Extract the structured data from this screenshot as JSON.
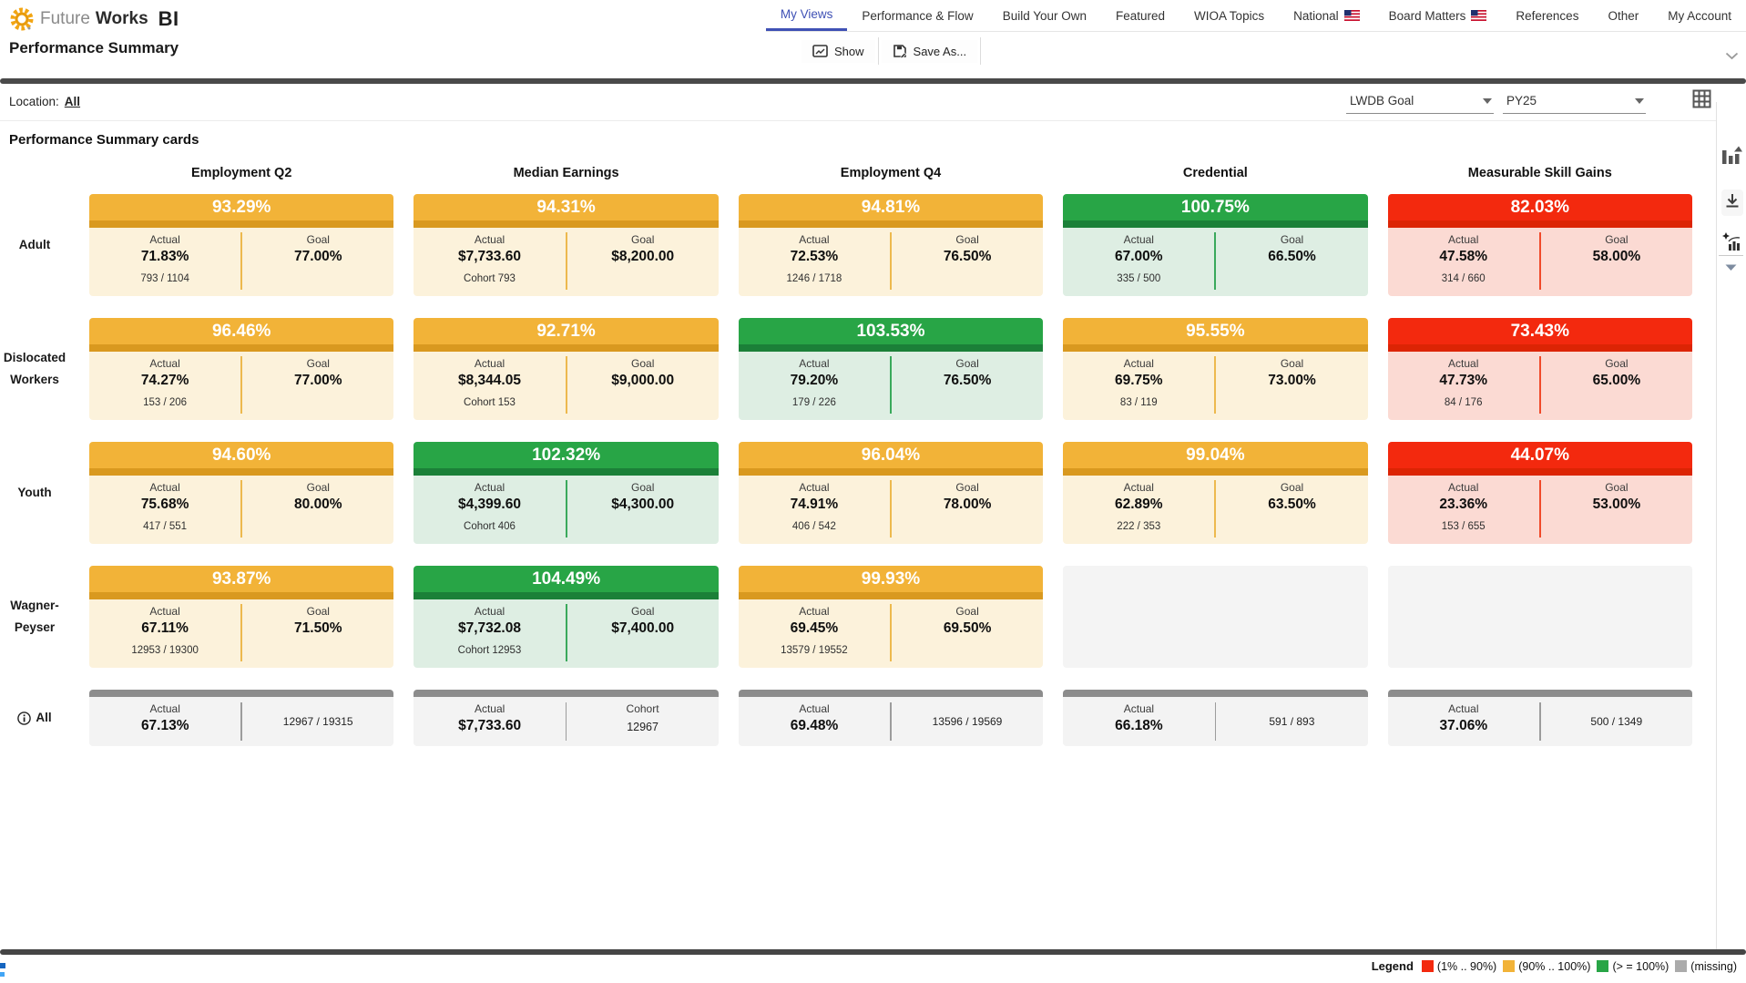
{
  "colors": {
    "accent": "#3F51B5",
    "status_yellow": "#F2B338",
    "status_green": "#28A546",
    "status_red": "#F3290E",
    "status_gray": "#8C8C8C"
  },
  "brand": {
    "part1": "Future",
    "part2": "Works",
    "part3": "BI"
  },
  "nav": {
    "items": [
      {
        "label": "My Views",
        "active": true
      },
      {
        "label": "Performance & Flow"
      },
      {
        "label": "Build Your Own"
      },
      {
        "label": "Featured"
      },
      {
        "label": "WIOA Topics"
      },
      {
        "label": "National",
        "flag": true
      },
      {
        "label": "Board Matters",
        "flag": true
      },
      {
        "label": "References"
      },
      {
        "label": "Other"
      },
      {
        "label": "My Account"
      }
    ]
  },
  "toolbar": {
    "title": "Performance Summary",
    "show_label": "Show",
    "save_as_label": "Save As..."
  },
  "filters": {
    "location_label": "Location:",
    "location_value": "All",
    "goal_selected": "LWDB Goal",
    "year_selected": "PY25"
  },
  "cards": {
    "section_title": "Performance Summary cards",
    "labels": {
      "actual": "Actual",
      "goal": "Goal"
    },
    "columns": [
      "Employment Q2",
      "Median Earnings",
      "Employment Q4",
      "Credential",
      "Measurable Skill Gains"
    ],
    "rows": [
      {
        "label": "Adult",
        "cells": [
          {
            "type": "metric",
            "status": "mid",
            "pct": "93.29%",
            "actual": "71.83%",
            "goal": "77.00%",
            "note": "793 / 1104"
          },
          {
            "type": "metric",
            "status": "mid",
            "pct": "94.31%",
            "actual": "$7,733.60",
            "goal": "$8,200.00",
            "note": "Cohort 793"
          },
          {
            "type": "metric",
            "status": "mid",
            "pct": "94.81%",
            "actual": "72.53%",
            "goal": "76.50%",
            "note": "1246 / 1718"
          },
          {
            "type": "metric",
            "status": "good",
            "pct": "100.75%",
            "actual": "67.00%",
            "goal": "66.50%",
            "note": "335 / 500"
          },
          {
            "type": "metric",
            "status": "bad",
            "pct": "82.03%",
            "actual": "47.58%",
            "goal": "58.00%",
            "note": "314 / 660"
          }
        ]
      },
      {
        "label": "Dislocated Workers",
        "cells": [
          {
            "type": "metric",
            "status": "mid",
            "pct": "96.46%",
            "actual": "74.27%",
            "goal": "77.00%",
            "note": "153 / 206"
          },
          {
            "type": "metric",
            "status": "mid",
            "pct": "92.71%",
            "actual": "$8,344.05",
            "goal": "$9,000.00",
            "note": "Cohort 153"
          },
          {
            "type": "metric",
            "status": "good",
            "pct": "103.53%",
            "actual": "79.20%",
            "goal": "76.50%",
            "note": "179 / 226"
          },
          {
            "type": "metric",
            "status": "mid",
            "pct": "95.55%",
            "actual": "69.75%",
            "goal": "73.00%",
            "note": "83 / 119"
          },
          {
            "type": "metric",
            "status": "bad",
            "pct": "73.43%",
            "actual": "47.73%",
            "goal": "65.00%",
            "note": "84 / 176"
          }
        ]
      },
      {
        "label": "Youth",
        "cells": [
          {
            "type": "metric",
            "status": "mid",
            "pct": "94.60%",
            "actual": "75.68%",
            "goal": "80.00%",
            "note": "417 / 551"
          },
          {
            "type": "metric",
            "status": "good",
            "pct": "102.32%",
            "actual": "$4,399.60",
            "goal": "$4,300.00",
            "note": "Cohort 406"
          },
          {
            "type": "metric",
            "status": "mid",
            "pct": "96.04%",
            "actual": "74.91%",
            "goal": "78.00%",
            "note": "406 / 542"
          },
          {
            "type": "metric",
            "status": "mid",
            "pct": "99.04%",
            "actual": "62.89%",
            "goal": "63.50%",
            "note": "222 / 353"
          },
          {
            "type": "metric",
            "status": "bad",
            "pct": "44.07%",
            "actual": "23.36%",
            "goal": "53.00%",
            "note": "153 / 655"
          }
        ]
      },
      {
        "label": "Wagner-Peyser",
        "cells": [
          {
            "type": "metric",
            "status": "mid",
            "pct": "93.87%",
            "actual": "67.11%",
            "goal": "71.50%",
            "note": "12953 / 19300"
          },
          {
            "type": "metric",
            "status": "good",
            "pct": "104.49%",
            "actual": "$7,732.08",
            "goal": "$7,400.00",
            "note": "Cohort 12953"
          },
          {
            "type": "metric",
            "status": "mid",
            "pct": "99.93%",
            "actual": "69.45%",
            "goal": "69.50%",
            "note": "13579 / 19552"
          },
          {
            "type": "empty"
          },
          {
            "type": "empty"
          }
        ]
      },
      {
        "label": "All",
        "info": true,
        "cells": [
          {
            "type": "summary",
            "actual": "67.13%",
            "right": "12967 / 19315"
          },
          {
            "type": "summary",
            "actual": "$7,733.60",
            "right_label": "Cohort",
            "right": "12967"
          },
          {
            "type": "summary",
            "actual": "69.48%",
            "right": "13596 / 19569"
          },
          {
            "type": "summary",
            "actual": "66.18%",
            "right": "591 / 893"
          },
          {
            "type": "summary",
            "actual": "37.06%",
            "right": "500 / 1349"
          }
        ]
      }
    ]
  },
  "legend": {
    "title": "Legend",
    "items": [
      {
        "label": "(1% .. 90%)",
        "color": "#F3290E"
      },
      {
        "label": "(90% .. 100%)",
        "color": "#F2B338"
      },
      {
        "label": "(> = 100%)",
        "color": "#28A546"
      },
      {
        "label": "(missing)",
        "color": "#ABABAB"
      }
    ]
  }
}
